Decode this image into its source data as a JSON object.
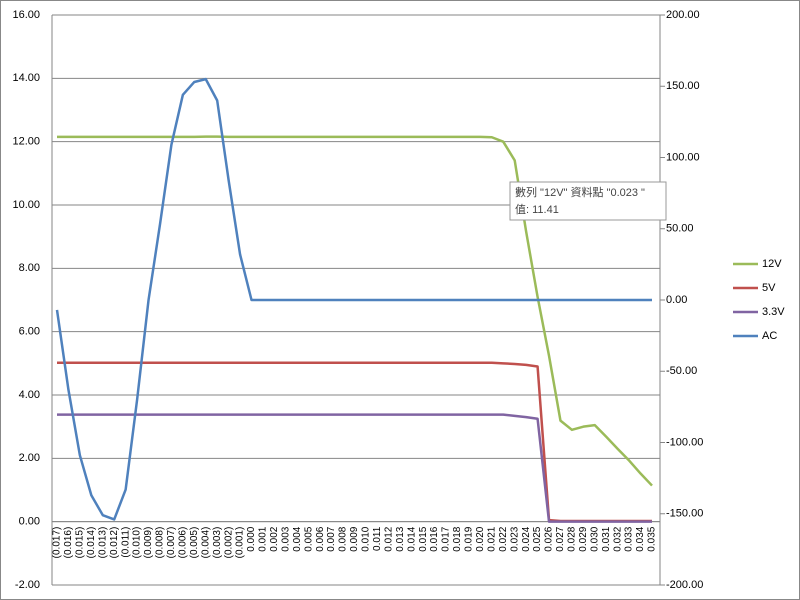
{
  "chart_data": {
    "type": "line",
    "categories": [
      "(0.017)",
      "(0.016)",
      "(0.015)",
      "(0.014)",
      "(0.013)",
      "(0.012)",
      "(0.011)",
      "(0.010)",
      "(0.009)",
      "(0.008)",
      "(0.007)",
      "(0.006)",
      "(0.005)",
      "(0.004)",
      "(0.003)",
      "(0.002)",
      "(0.001)",
      "0.000",
      "0.001",
      "0.002",
      "0.003",
      "0.004",
      "0.005",
      "0.006",
      "0.007",
      "0.008",
      "0.009",
      "0.010",
      "0.011",
      "0.012",
      "0.013",
      "0.014",
      "0.015",
      "0.016",
      "0.017",
      "0.018",
      "0.019",
      "0.020",
      "0.021",
      "0.022",
      "0.023",
      "0.024",
      "0.025",
      "0.026",
      "0.027",
      "0.028",
      "0.029",
      "0.030",
      "0.031",
      "0.032",
      "0.033",
      "0.034",
      "0.035"
    ],
    "series": [
      {
        "name": "12V",
        "color": "#9bbb59",
        "values": [
          12.15,
          12.15,
          12.15,
          12.15,
          12.15,
          12.15,
          12.15,
          12.15,
          12.15,
          12.15,
          12.15,
          12.15,
          12.15,
          12.16,
          12.16,
          12.15,
          12.15,
          12.15,
          12.15,
          12.15,
          12.15,
          12.15,
          12.15,
          12.15,
          12.15,
          12.15,
          12.15,
          12.15,
          12.15,
          12.15,
          12.15,
          12.15,
          12.15,
          12.15,
          12.15,
          12.15,
          12.15,
          12.15,
          12.14,
          12.0,
          11.41,
          9.16,
          7.1,
          5.24,
          3.19,
          2.9,
          3.0,
          3.05,
          2.68,
          2.3,
          1.93,
          1.52,
          1.14
        ]
      },
      {
        "name": "5V",
        "color": "#c0504d",
        "values": [
          5.02,
          5.02,
          5.02,
          5.02,
          5.02,
          5.02,
          5.02,
          5.02,
          5.02,
          5.02,
          5.02,
          5.02,
          5.02,
          5.02,
          5.02,
          5.02,
          5.02,
          5.02,
          5.02,
          5.02,
          5.02,
          5.02,
          5.02,
          5.02,
          5.02,
          5.02,
          5.02,
          5.02,
          5.02,
          5.02,
          5.02,
          5.02,
          5.02,
          5.02,
          5.02,
          5.02,
          5.02,
          5.02,
          5.02,
          5.0,
          4.98,
          4.95,
          4.9,
          0.05,
          0.02,
          0.02,
          0.02,
          0.02,
          0.02,
          0.02,
          0.02,
          0.02,
          0.02
        ]
      },
      {
        "name": "3.3V",
        "color": "#8064a2",
        "values": [
          3.38,
          3.38,
          3.38,
          3.38,
          3.38,
          3.38,
          3.38,
          3.38,
          3.38,
          3.38,
          3.38,
          3.38,
          3.38,
          3.38,
          3.38,
          3.38,
          3.38,
          3.38,
          3.38,
          3.38,
          3.38,
          3.38,
          3.38,
          3.38,
          3.38,
          3.38,
          3.38,
          3.38,
          3.38,
          3.38,
          3.38,
          3.38,
          3.38,
          3.38,
          3.38,
          3.38,
          3.38,
          3.38,
          3.38,
          3.38,
          3.34,
          3.3,
          3.25,
          0.0,
          0.0,
          0.0,
          0.0,
          0.0,
          0.0,
          0.0,
          0.0,
          0.0,
          0.0
        ]
      },
      {
        "name": "AC",
        "color": "#4f81bd",
        "axis": "y2",
        "values": [
          -7,
          -63,
          -109,
          -137,
          -151,
          -154,
          -133,
          -70,
          0,
          53,
          109,
          144,
          153,
          155,
          140,
          84,
          32,
          0,
          0,
          0,
          0,
          0,
          0,
          0,
          0,
          0,
          0,
          0,
          0,
          0,
          0,
          0,
          0,
          0,
          0,
          0,
          0,
          0,
          0,
          0,
          0,
          0,
          0,
          0,
          0,
          0,
          0,
          0,
          0,
          0,
          0,
          0,
          0
        ]
      }
    ],
    "ylim": [
      -2,
      16
    ],
    "yticks": [
      {
        "value": -2,
        "label": "-2.00"
      },
      {
        "value": 0,
        "label": "0.00"
      },
      {
        "value": 2,
        "label": "2.00"
      },
      {
        "value": 4,
        "label": "4.00"
      },
      {
        "value": 6,
        "label": "6.00"
      },
      {
        "value": 8,
        "label": "8.00"
      },
      {
        "value": 10,
        "label": "10.00"
      },
      {
        "value": 12,
        "label": "12.00"
      },
      {
        "value": 14,
        "label": "14.00"
      },
      {
        "value": 16,
        "label": "16.00"
      }
    ],
    "y2lim": [
      -200,
      200
    ],
    "y2ticks": [
      {
        "value": -200,
        "label": "-200.00"
      },
      {
        "value": -150,
        "label": "-150.00"
      },
      {
        "value": -100,
        "label": "-100.00"
      },
      {
        "value": -50,
        "label": "-50.00"
      },
      {
        "value": 0,
        "label": "0.00"
      },
      {
        "value": 50,
        "label": "50.00"
      },
      {
        "value": 100,
        "label": "100.00"
      },
      {
        "value": 150,
        "label": "150.00"
      },
      {
        "value": 200,
        "label": "200.00"
      }
    ],
    "grid": true,
    "legend": "right",
    "tooltip": [
      "數列 \"12V\" 資料點 \"0.023 \"",
      "值: 11.41"
    ]
  }
}
